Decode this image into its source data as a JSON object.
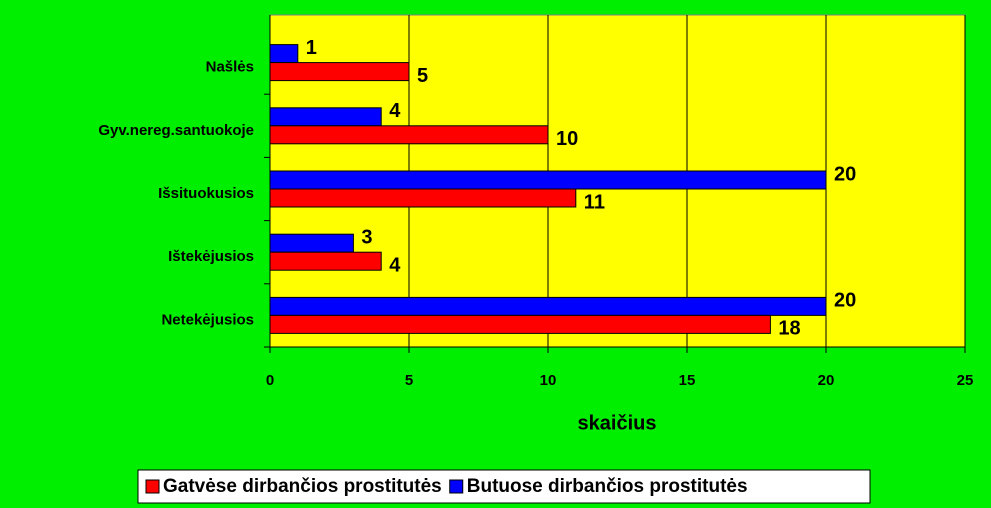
{
  "chart_data": {
    "type": "hbar",
    "categories": [
      "Našlės",
      "Gyv.nereg.santuokoje",
      "Išsituokusios",
      "Ištekėjusios",
      "Netekėjusios"
    ],
    "series": [
      {
        "name": "Gatvėse dirbančios prostitutės",
        "color": "#ff0000",
        "values": [
          5,
          10,
          11,
          4,
          18
        ]
      },
      {
        "name": "Butuose dirbančios prostitutės",
        "color": "#0000ff",
        "values": [
          1,
          4,
          20,
          3,
          20
        ]
      }
    ],
    "xlabel": "skaičius",
    "xlim": [
      0,
      25
    ],
    "xticks": [
      0,
      5,
      10,
      15,
      20,
      25
    ],
    "grid": true,
    "legend": "bottom"
  }
}
